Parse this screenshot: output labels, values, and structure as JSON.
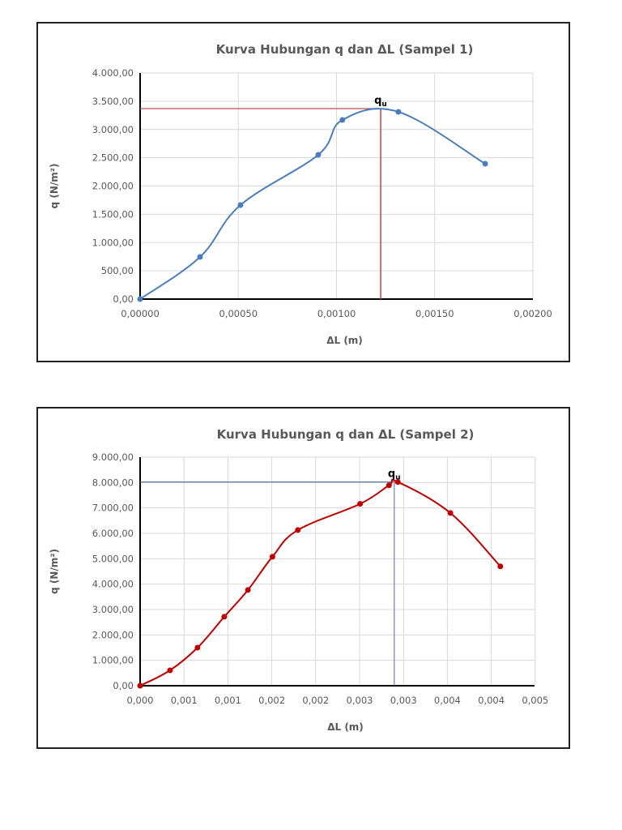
{
  "chart_data": [
    {
      "type": "line",
      "title": "Kurva Hubungan q dan ΔL (Sampel 1)",
      "xlabel": "ΔL (m)",
      "ylabel": "q (N/m²)",
      "xlim": [
        0,
        0.002
      ],
      "ylim": [
        0,
        4000
      ],
      "x_ticks": [
        "0,00000",
        "0,00050",
        "0,00100",
        "0,00150",
        "0,00200"
      ],
      "y_ticks": [
        "0,00",
        "500,00",
        "1.000,00",
        "1.500,00",
        "2.000,00",
        "2.500,00",
        "3.000,00",
        "3.500,00",
        "4.000,00"
      ],
      "grid": true,
      "series": [
        {
          "name": "Sampel 1",
          "color": "#4a7ebb",
          "smooth": true,
          "x": [
            0,
            0.000305,
            0.000511,
            0.000907,
            0.00103,
            0.001315,
            0.001757
          ],
          "values": [
            0,
            745,
            1663,
            2552,
            3168,
            3312,
            2394
          ]
        }
      ],
      "annotation": {
        "label": "q",
        "subscript": "u",
        "x": 0.001225,
        "y": 3369,
        "line_color": "#c0504d"
      }
    },
    {
      "type": "line",
      "title": "Kurva Hubungan q dan ΔL (Sampel 2)",
      "xlabel": "ΔL (m)",
      "ylabel": "q (N/m²)",
      "xlim": [
        0,
        0.0045
      ],
      "ylim": [
        0,
        9000
      ],
      "x_ticks": [
        "0,000",
        "0,001",
        "0,001",
        "0,002",
        "0,002",
        "0,003",
        "0,003",
        "0,004",
        "0,004",
        "0,005"
      ],
      "y_ticks": [
        "0,00",
        "1.000,00",
        "2.000,00",
        "3.000,00",
        "4.000,00",
        "5.000,00",
        "6.000,00",
        "7.000,00",
        "8.000,00",
        "9.000,00"
      ],
      "grid": true,
      "series": [
        {
          "name": "Sampel 2",
          "color": "#c00000",
          "smooth": true,
          "x": [
            0,
            0.000341,
            0.000655,
            0.00096,
            0.00123,
            0.00151,
            0.0018,
            0.00251,
            0.00284,
            0.00294,
            0.00354,
            0.00411
          ],
          "values": [
            0,
            607,
            1500,
            2715,
            3770,
            5080,
            6130,
            7160,
            7890,
            8020,
            6800,
            4700
          ]
        }
      ],
      "annotation": {
        "label": "q",
        "subscript": "u",
        "x": 0.0029,
        "y": 8020,
        "line_color": "#4a6fa5"
      }
    }
  ]
}
